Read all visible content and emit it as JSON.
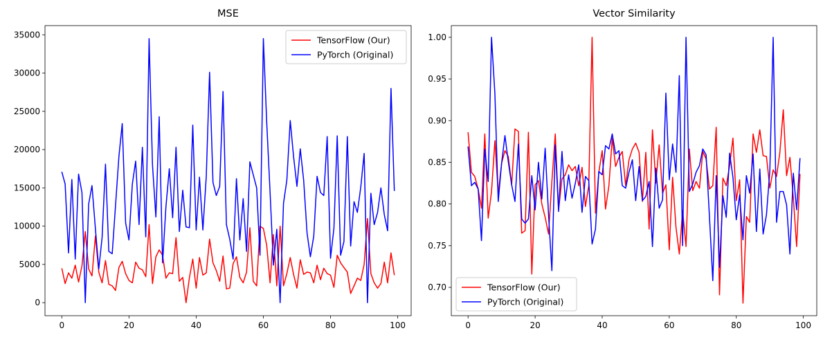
{
  "chart_data": [
    {
      "type": "line",
      "title": "MSE",
      "xlabel": "",
      "ylabel": "",
      "xlim": [
        -5,
        104
      ],
      "ylim": [
        -1700,
        36200
      ],
      "xticks": [
        0,
        20,
        40,
        60,
        80,
        100
      ],
      "yticks": [
        0,
        5000,
        10000,
        15000,
        20000,
        25000,
        30000,
        35000
      ],
      "grid": false,
      "legend": "top-right",
      "x": [
        0,
        1,
        2,
        3,
        4,
        5,
        6,
        7,
        8,
        9,
        10,
        11,
        12,
        13,
        14,
        15,
        16,
        17,
        18,
        19,
        20,
        21,
        22,
        23,
        24,
        25,
        26,
        27,
        28,
        29,
        30,
        31,
        32,
        33,
        34,
        35,
        36,
        37,
        38,
        39,
        40,
        41,
        42,
        43,
        44,
        45,
        46,
        47,
        48,
        49,
        50,
        51,
        52,
        53,
        54,
        55,
        56,
        57,
        58,
        59,
        60,
        61,
        62,
        63,
        64,
        65,
        66,
        67,
        68,
        69,
        70,
        71,
        72,
        73,
        74,
        75,
        76,
        77,
        78,
        79,
        80,
        81,
        82,
        83,
        84,
        85,
        86,
        87,
        88,
        89,
        90,
        91,
        92,
        93,
        94,
        95,
        96,
        97,
        98,
        99
      ],
      "series": [
        {
          "name": "TensorFlow (Our)",
          "color": "#ff0000",
          "values": [
            4500,
            2500,
            3900,
            3200,
            4900,
            2700,
            4800,
            9300,
            4400,
            3500,
            8700,
            4000,
            2600,
            5500,
            2400,
            2200,
            1600,
            4600,
            5400,
            3800,
            2900,
            2600,
            5300,
            4500,
            4300,
            3400,
            10200,
            2500,
            6000,
            6900,
            6200,
            3200,
            3900,
            3800,
            8500,
            2800,
            3300,
            0,
            3300,
            5700,
            1900,
            5900,
            3600,
            3900,
            8300,
            5200,
            4200,
            2800,
            6100,
            1800,
            1900,
            5100,
            6000,
            3300,
            2600,
            4000,
            9800,
            2800,
            2200,
            10000,
            9700,
            7500,
            2600,
            8900,
            2200,
            10000,
            2200,
            3800,
            5900,
            3700,
            1900,
            5600,
            3700,
            4000,
            3900,
            2600,
            4900,
            3000,
            4500,
            3800,
            3600,
            2000,
            6200,
            5200,
            4600,
            4000,
            1200,
            2200,
            3200,
            2900,
            5000,
            11000,
            3800,
            2600,
            1900,
            2500,
            5300,
            2600,
            6500,
            3600
          ]
        },
        {
          "name": "PyTorch (Original)",
          "color": "#0000ff",
          "values": [
            17100,
            15500,
            6500,
            16100,
            5700,
            16800,
            14400,
            0,
            12900,
            15300,
            9700,
            4400,
            8500,
            18100,
            6700,
            6400,
            12700,
            19100,
            23400,
            10400,
            8200,
            15500,
            18500,
            10200,
            20300,
            8600,
            34500,
            18000,
            11200,
            24300,
            5200,
            12500,
            17500,
            11100,
            20300,
            9300,
            14700,
            9900,
            9800,
            23200,
            9500,
            16400,
            9500,
            16500,
            30100,
            15700,
            14000,
            15200,
            27600,
            10200,
            8300,
            5700,
            16200,
            8200,
            13600,
            6700,
            18400,
            16700,
            15000,
            6200,
            34500,
            23600,
            14400,
            4900,
            9600,
            0,
            13000,
            16000,
            23800,
            19100,
            15200,
            20100,
            16000,
            9100,
            6000,
            8700,
            16500,
            14400,
            14000,
            21700,
            5800,
            9700,
            21800,
            6200,
            8000,
            21700,
            7400,
            13200,
            11800,
            15100,
            19500,
            0,
            14300,
            10200,
            11800,
            15000,
            11500,
            9400,
            28000,
            14600
          ]
        }
      ]
    },
    {
      "type": "line",
      "title": "Vector Similarity",
      "xlabel": "",
      "ylabel": "",
      "xlim": [
        -5,
        104
      ],
      "ylim": [
        0.666,
        1.014
      ],
      "xticks": [
        0,
        20,
        40,
        60,
        80,
        100
      ],
      "yticks": [
        "0.70",
        "0.75",
        "0.80",
        "0.85",
        "0.90",
        "0.95",
        "1.00"
      ],
      "grid": false,
      "legend": "bottom-left",
      "x": [
        0,
        1,
        2,
        3,
        4,
        5,
        6,
        7,
        8,
        9,
        10,
        11,
        12,
        13,
        14,
        15,
        16,
        17,
        18,
        19,
        20,
        21,
        22,
        23,
        24,
        25,
        26,
        27,
        28,
        29,
        30,
        31,
        32,
        33,
        34,
        35,
        36,
        37,
        38,
        39,
        40,
        41,
        42,
        43,
        44,
        45,
        46,
        47,
        48,
        49,
        50,
        51,
        52,
        53,
        54,
        55,
        56,
        57,
        58,
        59,
        60,
        61,
        62,
        63,
        64,
        65,
        66,
        67,
        68,
        69,
        70,
        71,
        72,
        73,
        74,
        75,
        76,
        77,
        78,
        79,
        80,
        81,
        82,
        83,
        84,
        85,
        86,
        87,
        88,
        89,
        90,
        91,
        92,
        93,
        94,
        95,
        96,
        97,
        98,
        99
      ],
      "series": [
        {
          "name": "TensorFlow (Our)",
          "color": "#ff0000",
          "values": [
            0.886,
            0.838,
            0.833,
            0.818,
            0.795,
            0.884,
            0.783,
            0.815,
            0.876,
            0.812,
            0.849,
            0.864,
            0.857,
            0.823,
            0.89,
            0.887,
            0.765,
            0.768,
            0.886,
            0.716,
            0.823,
            0.828,
            0.8,
            0.784,
            0.764,
            0.827,
            0.884,
            0.793,
            0.83,
            0.835,
            0.847,
            0.84,
            0.845,
            0.822,
            0.844,
            0.797,
            0.822,
            1.0,
            0.789,
            0.838,
            0.864,
            0.794,
            0.822,
            0.879,
            0.845,
            0.856,
            0.863,
            0.822,
            0.853,
            0.866,
            0.873,
            0.862,
            0.803,
            0.862,
            0.77,
            0.889,
            0.825,
            0.871,
            0.813,
            0.823,
            0.745,
            0.832,
            0.772,
            0.74,
            0.792,
            0.749,
            0.866,
            0.816,
            0.827,
            0.819,
            0.863,
            0.854,
            0.818,
            0.822,
            0.892,
            0.691,
            0.831,
            0.822,
            0.846,
            0.879,
            0.804,
            0.829,
            0.681,
            0.785,
            0.778,
            0.884,
            0.862,
            0.889,
            0.858,
            0.857,
            0.819,
            0.841,
            0.833,
            0.862,
            0.913,
            0.834,
            0.856,
            0.808,
            0.749,
            0.836
          ]
        },
        {
          "name": "PyTorch (Original)",
          "color": "#0000ff",
          "values": [
            0.869,
            0.822,
            0.826,
            0.818,
            0.756,
            0.866,
            0.827,
            1.0,
            0.932,
            0.803,
            0.849,
            0.882,
            0.851,
            0.823,
            0.803,
            0.872,
            0.782,
            0.777,
            0.782,
            0.834,
            0.793,
            0.85,
            0.806,
            0.867,
            0.787,
            0.72,
            0.871,
            0.791,
            0.863,
            0.804,
            0.835,
            0.807,
            0.825,
            0.847,
            0.79,
            0.833,
            0.828,
            0.752,
            0.77,
            0.839,
            0.835,
            0.87,
            0.866,
            0.884,
            0.86,
            0.864,
            0.822,
            0.819,
            0.838,
            0.853,
            0.804,
            0.845,
            0.804,
            0.809,
            0.827,
            0.749,
            0.843,
            0.795,
            0.805,
            0.933,
            0.829,
            0.872,
            0.838,
            0.954,
            0.75,
            1.0,
            0.815,
            0.824,
            0.838,
            0.846,
            0.866,
            0.859,
            0.784,
            0.708,
            0.834,
            0.724,
            0.81,
            0.784,
            0.861,
            0.832,
            0.781,
            0.811,
            0.757,
            0.834,
            0.813,
            0.86,
            0.767,
            0.842,
            0.764,
            0.787,
            0.84,
            1.0,
            0.778,
            0.815,
            0.815,
            0.799,
            0.74,
            0.837,
            0.793,
            0.855
          ]
        }
      ]
    }
  ]
}
